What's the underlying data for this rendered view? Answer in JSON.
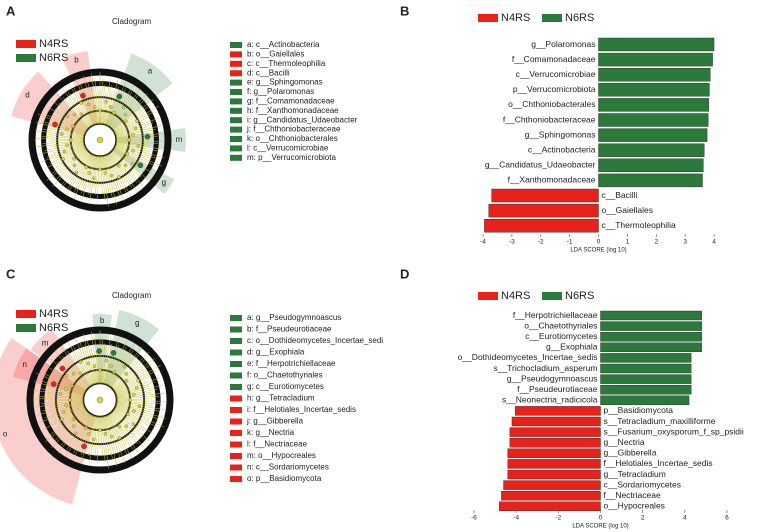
{
  "chart_data": [
    {
      "type": "cladogram",
      "panel": "A",
      "title": "Cladogram",
      "series": [
        {
          "name": "N4RS",
          "color": "#e8221b"
        },
        {
          "name": "N6RS",
          "color": "#2b7a3b"
        }
      ],
      "taxa": [
        {
          "label": "a: c__Actinobacteria",
          "color": "#2b7a3b"
        },
        {
          "label": "b: o__Gaiellales",
          "color": "#e8221b"
        },
        {
          "label": "c: c__Thermoleophilia",
          "color": "#e8221b"
        },
        {
          "label": "d: c__Bacilli",
          "color": "#e8221b"
        },
        {
          "label": "e: g__Sphingomonas",
          "color": "#2b7a3b"
        },
        {
          "label": "f: g__Polaromonas",
          "color": "#2b7a3b"
        },
        {
          "label": "g: f__Comamonadaceae",
          "color": "#2b7a3b"
        },
        {
          "label": "h: f__Xanthomonadaceae",
          "color": "#2b7a3b"
        },
        {
          "label": "i: g__Candidatus_Udaeobacter",
          "color": "#2b7a3b"
        },
        {
          "label": "j: f__Chthoniobacteraceae",
          "color": "#2b7a3b"
        },
        {
          "label": "k: o__Chthoniobacterales",
          "color": "#2b7a3b"
        },
        {
          "label": "l: c__Verrucomicrobiae",
          "color": "#2b7a3b"
        },
        {
          "label": "m: p__Verrucomicrobiota",
          "color": "#2b7a3b"
        }
      ],
      "clade_labels": [
        "d",
        "b",
        "a",
        "m",
        "g"
      ]
    },
    {
      "type": "bar",
      "panel": "B",
      "orientation": "horizontal",
      "legend": [
        {
          "name": "N4RS",
          "color": "#e8221b"
        },
        {
          "name": "N6RS",
          "color": "#2b7a3b"
        }
      ],
      "categories": [
        "g__Polaromonas",
        "f__Comamonadaceae",
        "c__Verrucomicrobiae",
        "p__Verrucomicrobiota",
        "o__Chthoniobacterales",
        "f__Chthoniobacteraceae",
        "g__Sphingomonas",
        "c__Actinobacteria",
        "g__Candidatus_Udaeobacter",
        "f__Xanthomonadaceae",
        "c__Bacilli",
        "o__Gaiellales",
        "c__Thermoleophilia"
      ],
      "values": [
        4.0,
        3.95,
        3.87,
        3.84,
        3.82,
        3.8,
        3.76,
        3.66,
        3.63,
        3.6,
        -3.7,
        -3.8,
        -3.95
      ],
      "bar_colors": [
        "#2b7a3b",
        "#2b7a3b",
        "#2b7a3b",
        "#2b7a3b",
        "#2b7a3b",
        "#2b7a3b",
        "#2b7a3b",
        "#2b7a3b",
        "#2b7a3b",
        "#2b7a3b",
        "#e8221b",
        "#e8221b",
        "#e8221b"
      ],
      "xlim": [
        -4.2,
        4.3
      ],
      "xticks": [
        -4,
        -3,
        -2,
        -1,
        0,
        1,
        2,
        3,
        4
      ],
      "xlabel": "LDA SCORE (log 10)"
    },
    {
      "type": "cladogram",
      "panel": "C",
      "title": "Cladogram",
      "series": [
        {
          "name": "N4RS",
          "color": "#e8221b"
        },
        {
          "name": "N6RS",
          "color": "#2b7a3b"
        }
      ],
      "taxa": [
        {
          "label": "a: g__Pseudogymnoascus",
          "color": "#2b7a3b"
        },
        {
          "label": "b: f__Pseudeurotiaceae",
          "color": "#2b7a3b"
        },
        {
          "label": "c: o__Dothideomycetes_Incertae_sedi",
          "color": "#2b7a3b"
        },
        {
          "label": "d: g__Exophiala",
          "color": "#2b7a3b"
        },
        {
          "label": "e: f__Herpotrichiellaceae",
          "color": "#2b7a3b"
        },
        {
          "label": "f: o__Chaetothyriales",
          "color": "#2b7a3b"
        },
        {
          "label": "g: c__Eurotiomycetes",
          "color": "#2b7a3b"
        },
        {
          "label": "h: g__Tetracladium",
          "color": "#e8221b"
        },
        {
          "label": "i: f__Helotiales_Incertae_sedis",
          "color": "#e8221b"
        },
        {
          "label": "j: g__Gibberella",
          "color": "#e8221b"
        },
        {
          "label": "k: g__Nectria",
          "color": "#e8221b"
        },
        {
          "label": "l: f__Nectriaceae",
          "color": "#e8221b"
        },
        {
          "label": "m: o__Hypocreales",
          "color": "#e8221b"
        },
        {
          "label": "n: c__Sordariomycetes",
          "color": "#e8221b"
        },
        {
          "label": "o: p__Basidiomycota",
          "color": "#e8221b"
        }
      ],
      "clade_labels": [
        "o",
        "n",
        "m",
        "g",
        "b"
      ]
    },
    {
      "type": "bar",
      "panel": "D",
      "orientation": "horizontal",
      "legend": [
        {
          "name": "N4RS",
          "color": "#e8221b"
        },
        {
          "name": "N6RS",
          "color": "#2b7a3b"
        }
      ],
      "categories": [
        "f__Herpotrichiellaceae",
        "o__Chaetothyriales",
        "c__Eurotiomycetes",
        "g__Exophiala",
        "o__Dothideomycetes_Incertae_sedis",
        "s__Trichocladium_asperum",
        "g__Pseudogymnoascus",
        "f__Pseudeurotiaceae",
        "s__Neonectria_radicicola",
        "p__Basidiomycota",
        "s__Tetracladium_maxilliforme",
        "s__Fusarium_oxysporum_f_sp_psidii",
        "g__Nectria",
        "g__Gibberella",
        "f__Helotiales_Incertae_sedis",
        "g__Tetracladium",
        "c__Sordariomycetes",
        "f__Nectriaceae",
        "o__Hypocreales"
      ],
      "values": [
        4.8,
        4.8,
        4.8,
        4.8,
        4.3,
        4.3,
        4.3,
        4.3,
        4.2,
        -4.05,
        -4.2,
        -4.3,
        -4.3,
        -4.4,
        -4.4,
        -4.4,
        -4.6,
        -4.7,
        -4.8
      ],
      "bar_colors": [
        "#2b7a3b",
        "#2b7a3b",
        "#2b7a3b",
        "#2b7a3b",
        "#2b7a3b",
        "#2b7a3b",
        "#2b7a3b",
        "#2b7a3b",
        "#2b7a3b",
        "#e8221b",
        "#e8221b",
        "#e8221b",
        "#e8221b",
        "#e8221b",
        "#e8221b",
        "#e8221b",
        "#e8221b",
        "#e8221b",
        "#e8221b"
      ],
      "xlim": [
        -6.3,
        6.3
      ],
      "xticks": [
        -6,
        -4,
        -2,
        0,
        2,
        4,
        6
      ],
      "xlabel": "LDA SCORE (log 10)"
    }
  ]
}
